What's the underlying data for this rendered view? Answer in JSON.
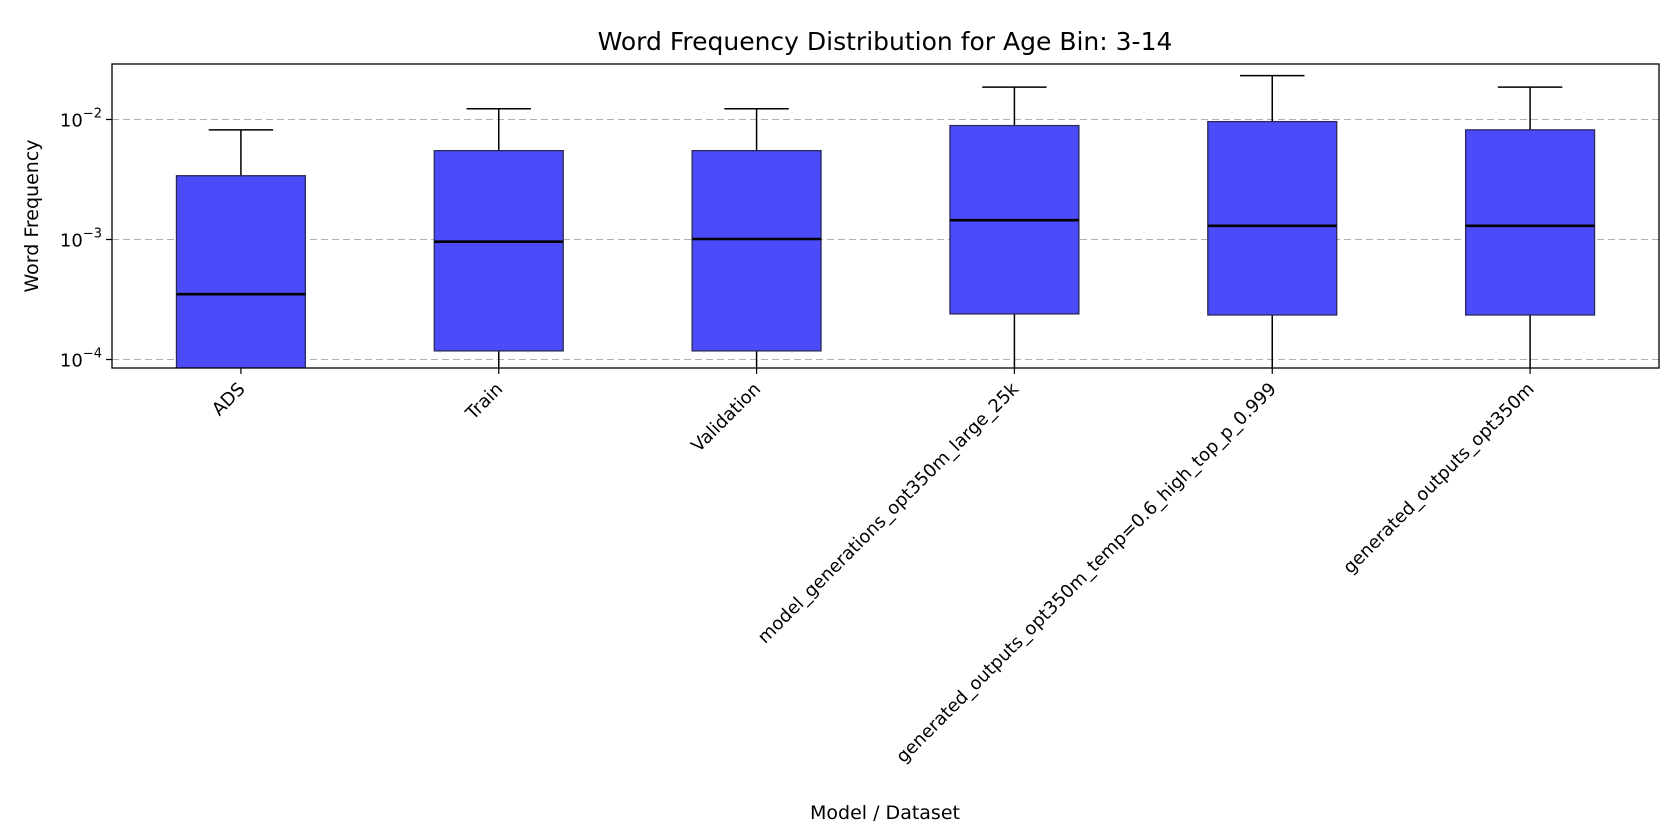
{
  "chart_data": {
    "type": "box",
    "title": "Word Frequency Distribution for Age Bin: 3-14",
    "xlabel": "Model / Dataset",
    "ylabel": "Word Frequency",
    "yscale": "log",
    "ylim": [
      8.5e-05,
      0.029
    ],
    "yticks": [
      {
        "value": 0.0001,
        "base": "10",
        "exp": "−4"
      },
      {
        "value": 0.001,
        "base": "10",
        "exp": "−3"
      },
      {
        "value": 0.01,
        "base": "10",
        "exp": "−2"
      }
    ],
    "grid": "y-major dashed",
    "box_color": "#4b4bf9",
    "categories": [
      "ADS",
      "Train",
      "Validation",
      "model_generations_opt350m_large_25k",
      "generated_outputs_opt350m_temp=0.6_high_top_p_0.999",
      "generated_outputs_opt350m"
    ],
    "boxes": [
      {
        "whisker_low": 8e-05,
        "q1": 8e-05,
        "median": 0.00035,
        "q3": 0.0034,
        "whisker_high": 0.0082
      },
      {
        "whisker_low": 8e-05,
        "q1": 0.000118,
        "median": 0.00096,
        "q3": 0.0055,
        "whisker_high": 0.0123
      },
      {
        "whisker_low": 8e-05,
        "q1": 0.000118,
        "median": 0.00101,
        "q3": 0.0055,
        "whisker_high": 0.0123
      },
      {
        "whisker_low": 8e-05,
        "q1": 0.00024,
        "median": 0.00145,
        "q3": 0.0089,
        "whisker_high": 0.0186
      },
      {
        "whisker_low": 8e-05,
        "q1": 0.000235,
        "median": 0.0013,
        "q3": 0.0096,
        "whisker_high": 0.0232
      },
      {
        "whisker_low": 8e-05,
        "q1": 0.000235,
        "median": 0.0013,
        "q3": 0.0082,
        "whisker_high": 0.0186
      }
    ]
  }
}
